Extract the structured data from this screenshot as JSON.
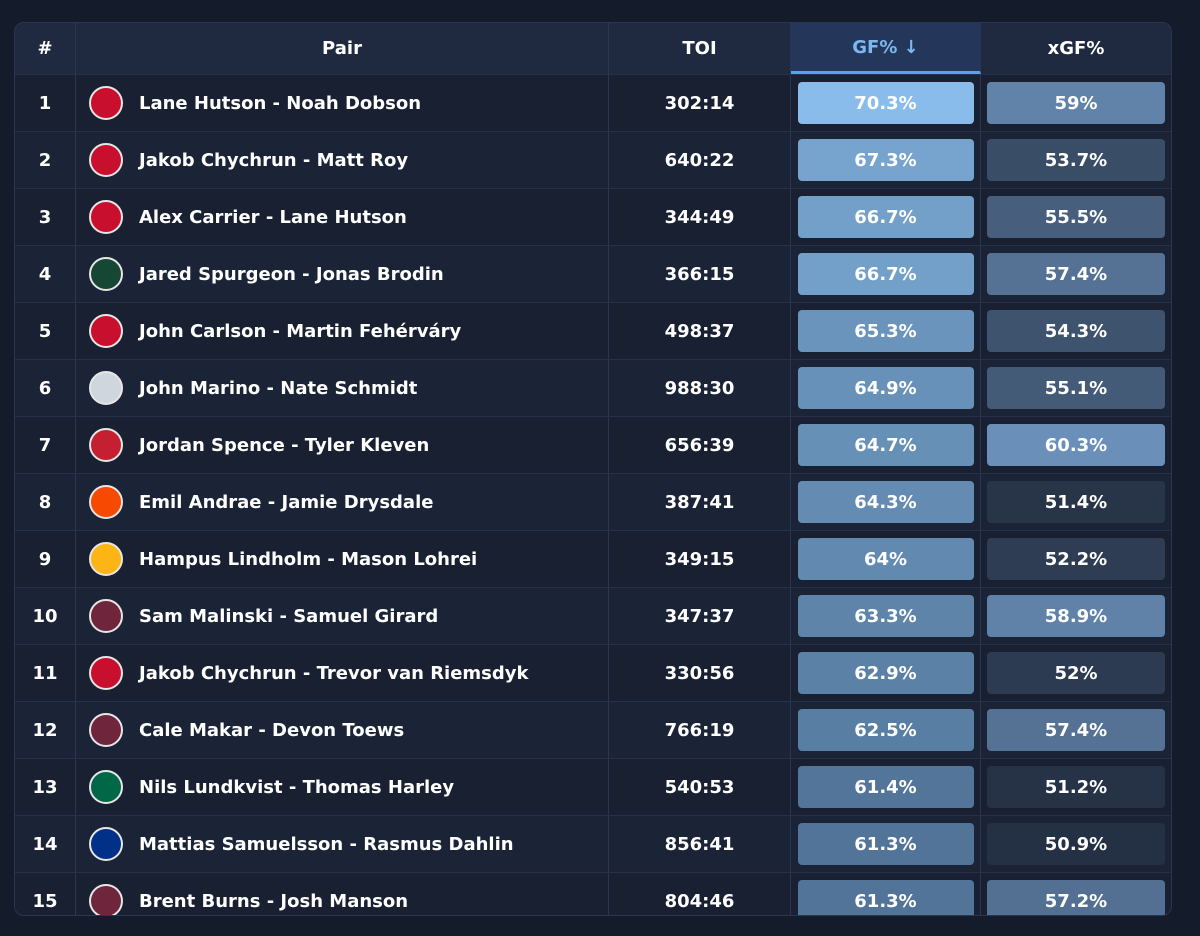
{
  "table": {
    "headers": [
      "#",
      "Pair",
      "TOI",
      "GF% ↓",
      "xGF%"
    ],
    "rows": [
      [
        "1",
        "Lane Hutson - Noah Dobson",
        "302:14",
        "70.3%",
        "59%"
      ],
      [
        "2",
        "Jakob Chychrun - Matt Roy",
        "640:22",
        "67.3%",
        "53.7%"
      ],
      [
        "3",
        "Alex Carrier - Lane Hutson",
        "344:49",
        "66.7%",
        "55.5%"
      ],
      [
        "4",
        "Jared Spurgeon - Jonas Brodin",
        "366:15",
        "66.7%",
        "57.4%"
      ],
      [
        "5",
        "John Carlson - Martin Fehérváry",
        "498:37",
        "65.3%",
        "54.3%"
      ],
      [
        "6",
        "John Marino - Nate Schmidt",
        "988:30",
        "64.9%",
        "55.1%"
      ],
      [
        "7",
        "Jordan Spence - Tyler Kleven",
        "656:39",
        "64.7%",
        "60.3%"
      ],
      [
        "8",
        "Emil Andrae - Jamie Drysdale",
        "387:41",
        "64.3%",
        "51.4%"
      ],
      [
        "9",
        "Hampus Lindholm - Mason Lohrei",
        "349:15",
        "64%",
        "52.2%"
      ],
      [
        "10",
        "Sam Malinski - Samuel Girard",
        "347:37",
        "63.3%",
        "58.9%"
      ],
      [
        "11",
        "Jakob Chychrun - Trevor van Riemsdyk",
        "330:56",
        "62.9%",
        "52%"
      ],
      [
        "12",
        "Cale Makar - Devon Toews",
        "766:19",
        "62.5%",
        "57.4%"
      ],
      [
        "13",
        "Nils Lundkvist - Thomas Harley",
        "540:53",
        "61.4%",
        "51.2%"
      ],
      [
        "14",
        "Mattias Samuelsson - Rasmus Dahlin",
        "856:41",
        "61.3%",
        "50.9%"
      ],
      [
        "15",
        "Brent Burns - Josh Manson",
        "804:46",
        "61.3%",
        "57.2%"
      ]
    ]
  }
}
